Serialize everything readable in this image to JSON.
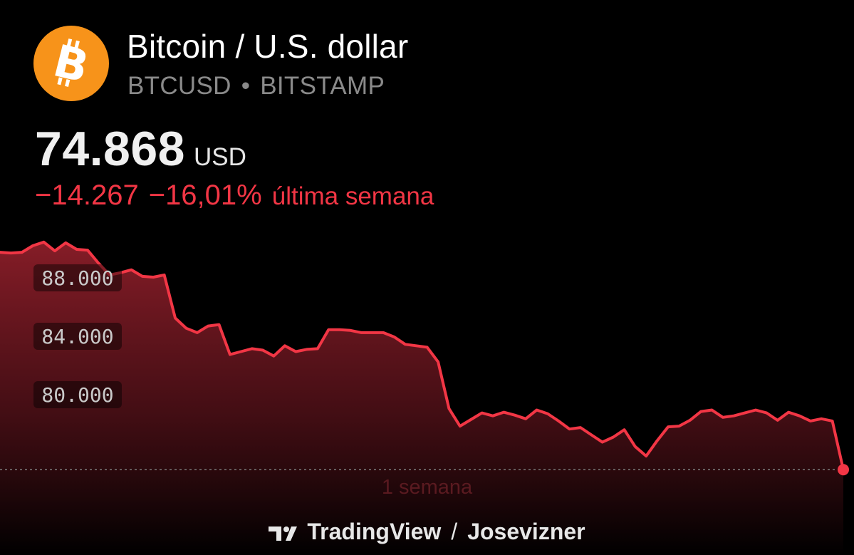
{
  "header": {
    "title": "Bitcoin / U.S. dollar",
    "symbol": "BTCUSD",
    "separator": "•",
    "exchange": "BITSTAMP",
    "logo_icon": "bitcoin-logo-icon"
  },
  "quote": {
    "price": "74.868",
    "currency": "USD",
    "change_abs": "−14.267",
    "change_pct": "−16,01%",
    "period_text": "última semana"
  },
  "colors": {
    "background": "#000000",
    "line": "#f23645",
    "negative": "#f23645",
    "logo": "#f7931a"
  },
  "chart_data": {
    "type": "area",
    "title": "",
    "xlabel": "1 semana",
    "ylabel": "",
    "ylim": [
      76500,
      90000
    ],
    "yticks": [
      80000,
      84000,
      88000
    ],
    "ytick_labels": [
      "80.000",
      "84.000",
      "88.000"
    ],
    "baseline": 74868,
    "series": [
      {
        "values": [
          89750,
          89700,
          89750,
          90200,
          90450,
          89850,
          90400,
          89950,
          89900,
          89000,
          88200,
          88350,
          88550,
          88100,
          88050,
          88200,
          85250,
          84550,
          84250,
          84700,
          84800,
          82750,
          82950,
          83150,
          83050,
          82650,
          83350,
          82950,
          83100,
          83150,
          84450,
          84450,
          84400,
          84250,
          84250,
          84250,
          83950,
          83450,
          83350,
          83250,
          82250,
          79050,
          77850,
          78300,
          78750,
          78550,
          78800,
          78600,
          78350,
          78950,
          78700,
          78200,
          77650,
          77750,
          77250,
          76750,
          77100,
          77600,
          76450,
          75800,
          76850,
          77800,
          77850,
          78250,
          78850,
          78950,
          78450,
          78550,
          78750,
          78950,
          78750,
          78250,
          78800,
          78550,
          78200,
          78350,
          78200,
          74868
        ]
      }
    ]
  },
  "footer": {
    "brand": "TradingView",
    "brand_icon": "tradingview-logo-icon",
    "slash": "/",
    "author": "Josevizner"
  }
}
